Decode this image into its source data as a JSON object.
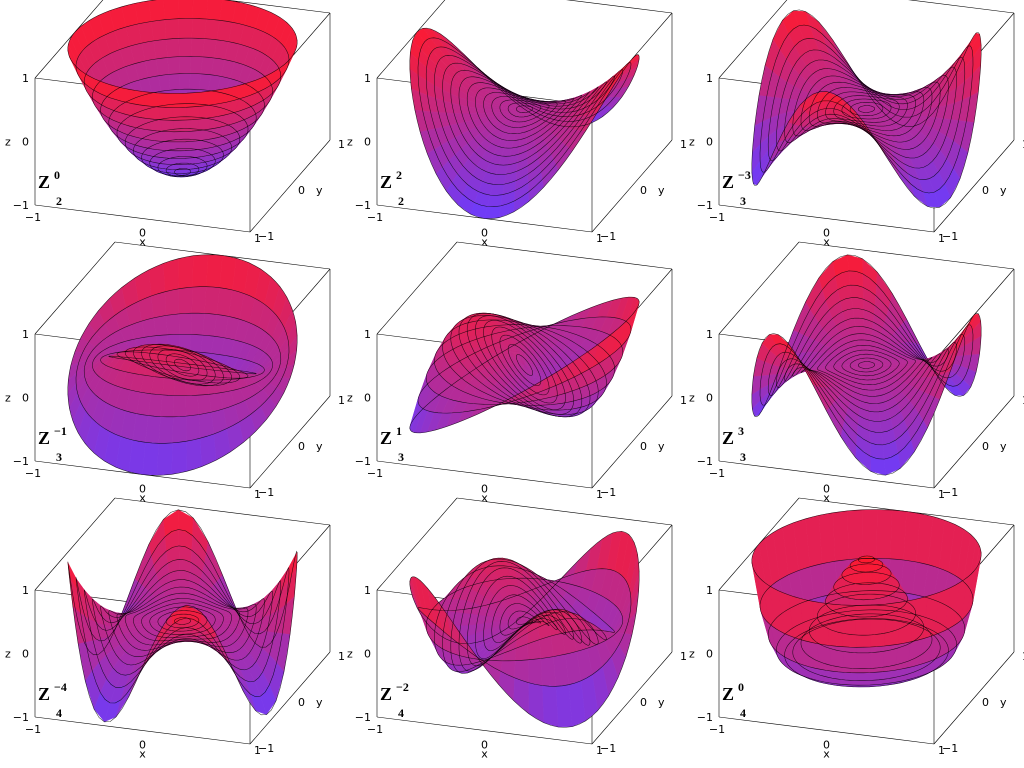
{
  "axes": {
    "x_label": "x",
    "y_label": "y",
    "z_label": "z",
    "z_ticks": [
      "1",
      "0",
      "−1"
    ],
    "x_ticks": [
      "−1",
      "0"
    ],
    "y_ticks": [
      "1",
      "0",
      "−1"
    ],
    "x_last_tick": "1",
    "range": [
      -1,
      1
    ]
  },
  "colors": {
    "top": "#ff1a2e",
    "bottom": "#6a3cff",
    "contour": "#000000",
    "box": "#000000"
  },
  "panels": [
    {
      "symbol": "Z",
      "n": "2",
      "m": "0",
      "type": "paraboloid"
    },
    {
      "symbol": "Z",
      "n": "2",
      "m": "2",
      "type": "saddle"
    },
    {
      "symbol": "Z",
      "n": "3",
      "m": "−3",
      "type": "trefoil"
    },
    {
      "symbol": "Z",
      "n": "3",
      "m": "−1",
      "type": "coma"
    },
    {
      "symbol": "Z",
      "n": "3",
      "m": "1",
      "type": "coma2"
    },
    {
      "symbol": "Z",
      "n": "3",
      "m": "3",
      "type": "trefoil2"
    },
    {
      "symbol": "Z",
      "n": "4",
      "m": "−4",
      "type": "tetrafoil"
    },
    {
      "symbol": "Z",
      "n": "4",
      "m": "−2",
      "type": "astig2"
    },
    {
      "symbol": "Z",
      "n": "4",
      "m": "0",
      "type": "spherical"
    }
  ]
}
